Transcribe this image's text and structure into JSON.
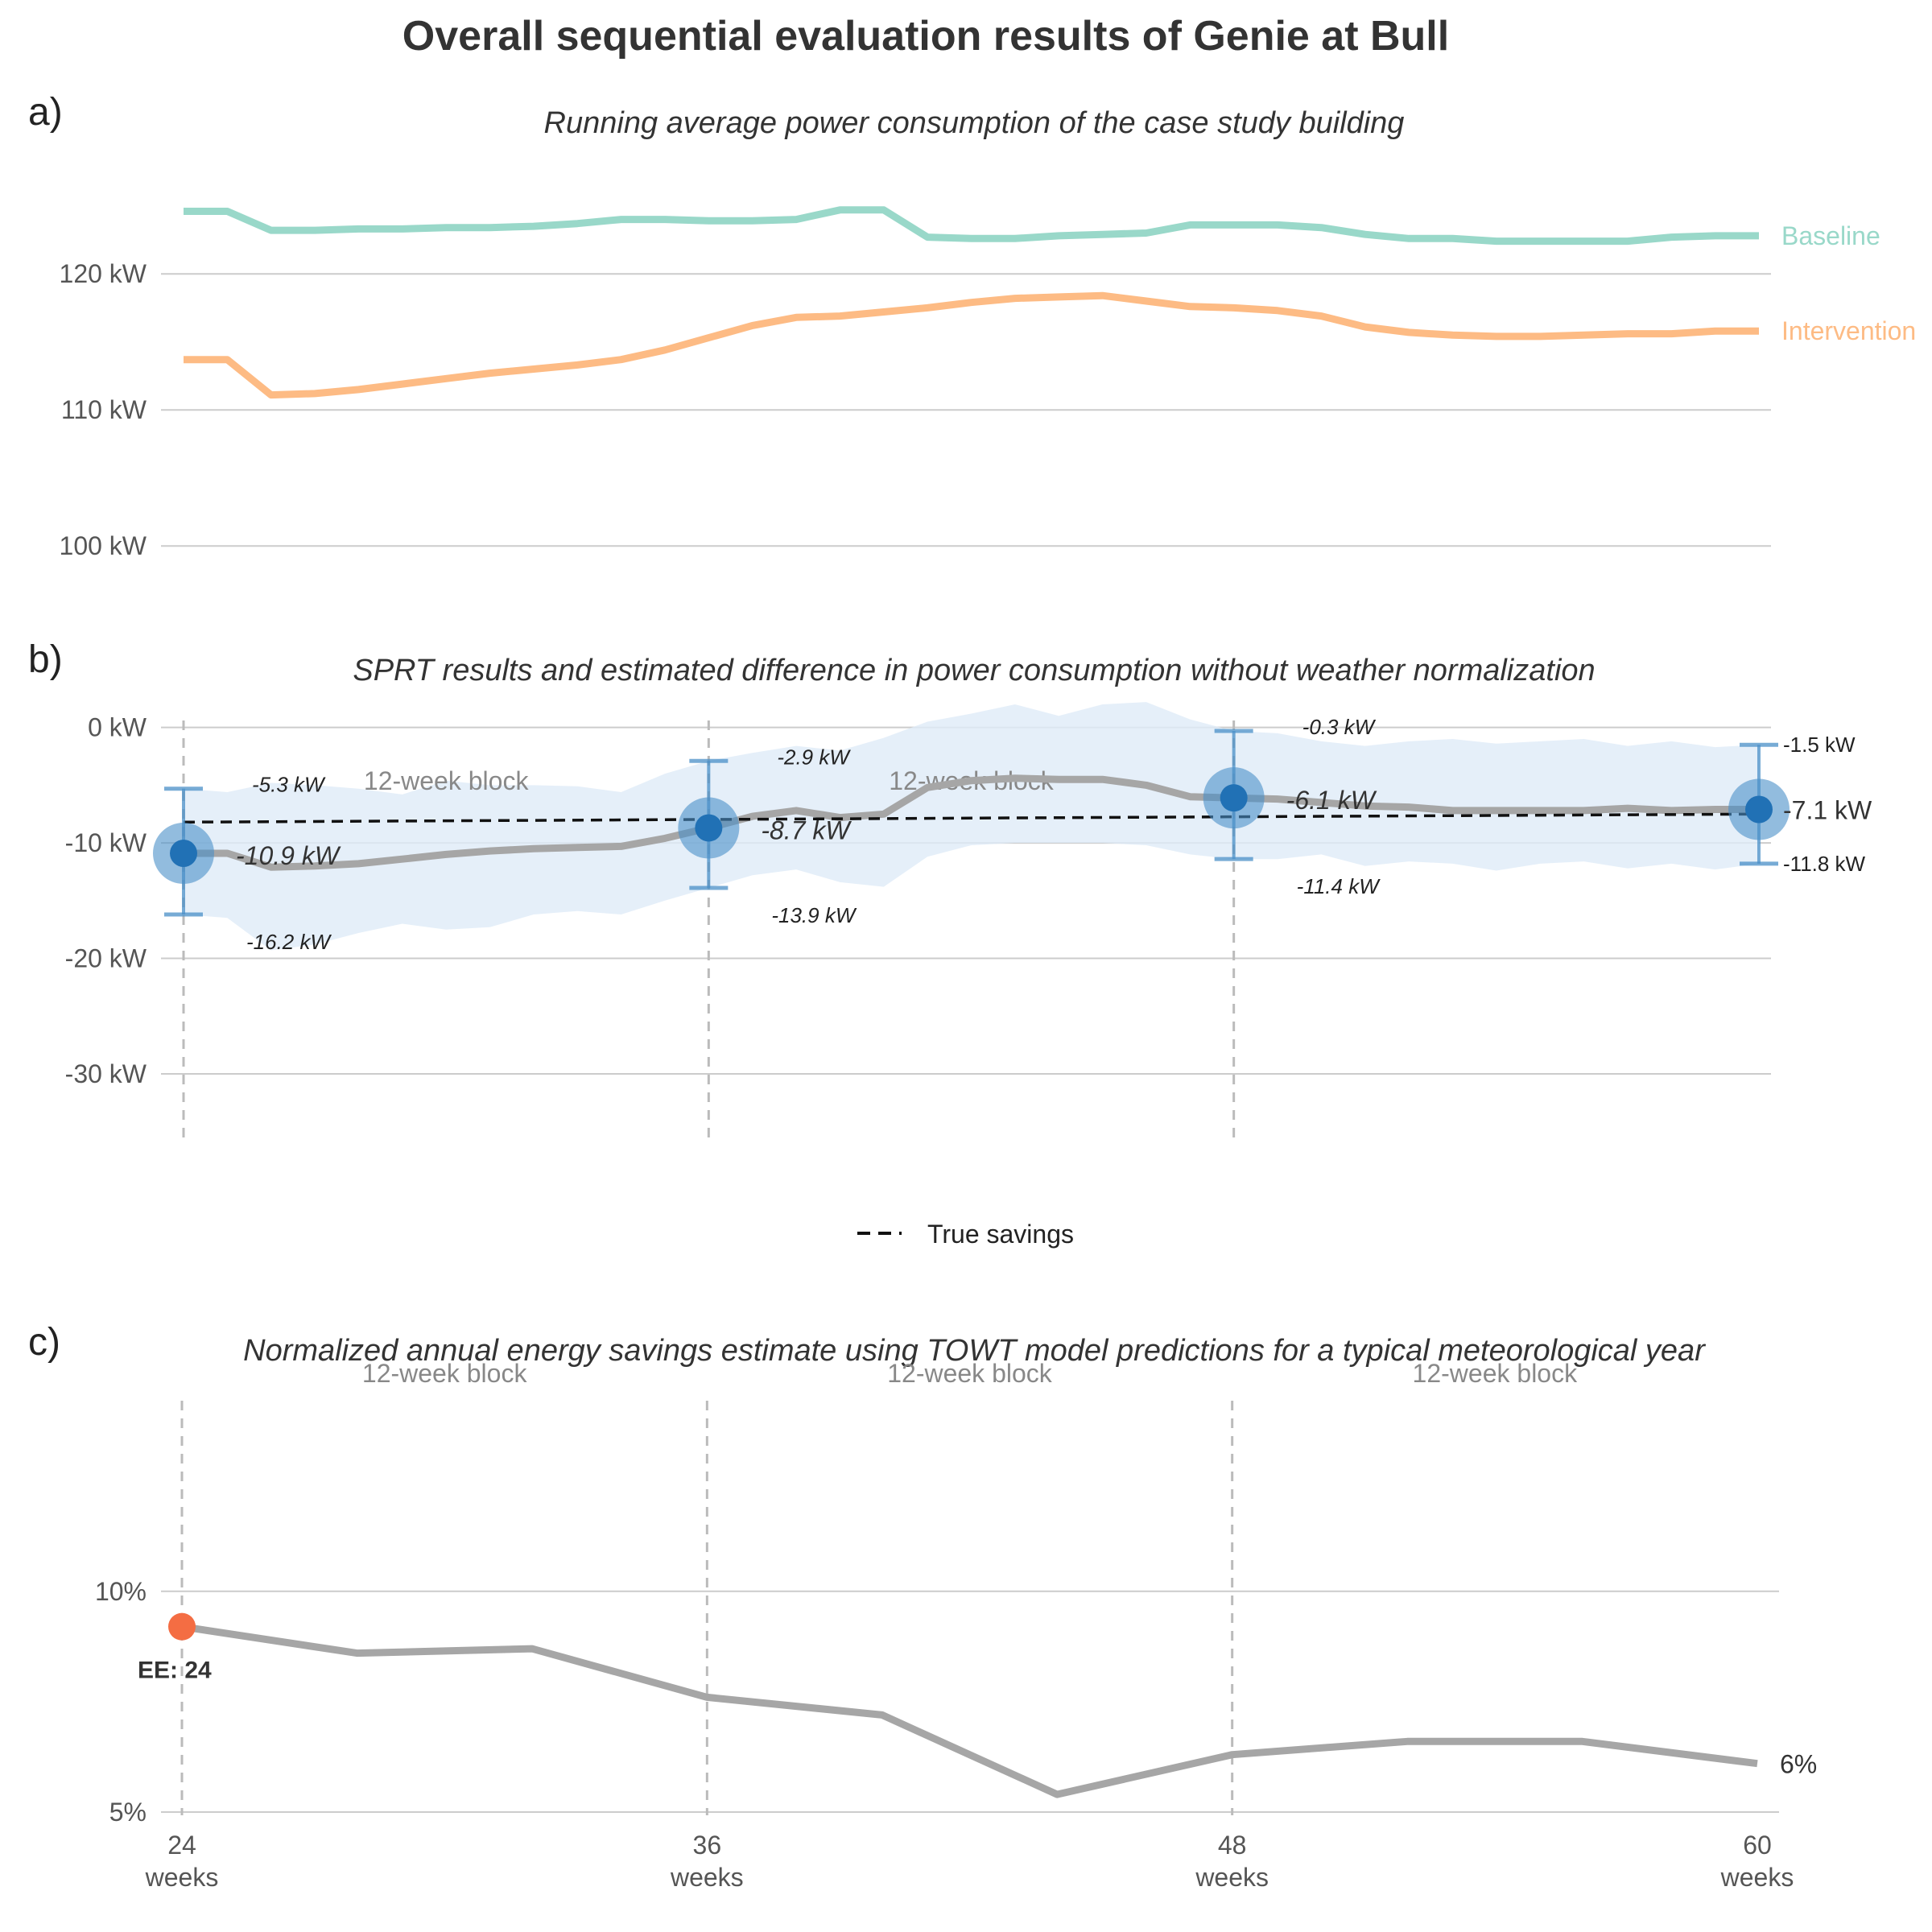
{
  "title": "Overall sequential evaluation results of Genie at Bull",
  "panels": {
    "a": {
      "letter": "a)",
      "subtitle": "Running average power consumption of the case study building"
    },
    "b": {
      "letter": "b)",
      "subtitle": "SPRT results and estimated difference in power consumption without weather normalization"
    },
    "c": {
      "letter": "c)",
      "subtitle": "Normalized annual energy savings estimate using TOWT model predictions for a typical meteorological year"
    }
  },
  "legend": {
    "true_savings": "True savings"
  },
  "block_label": "12-week block",
  "x_ticks": [
    {
      "value": 24,
      "line1": "24",
      "line2": "weeks"
    },
    {
      "value": 36,
      "line1": "36",
      "line2": "weeks"
    },
    {
      "value": 48,
      "line1": "48",
      "line2": "weeks"
    },
    {
      "value": 60,
      "line1": "60",
      "line2": "weeks"
    }
  ],
  "colors": {
    "baseline": "#99d8c9",
    "intervention": "#fdbb84",
    "estimate": "#a6a6a6",
    "band": "#deebf7",
    "point": "#2171b5",
    "ee_point": "#f46d43"
  },
  "chart_data": [
    {
      "type": "line",
      "panel": "a",
      "xlim": [
        24,
        60
      ],
      "ylim": [
        98,
        128
      ],
      "y_ticks": [
        {
          "value": 100,
          "label": "100 kW"
        },
        {
          "value": 110,
          "label": "110 kW"
        },
        {
          "value": 120,
          "label": "120 kW"
        }
      ],
      "x": [
        24,
        25,
        26,
        27,
        28,
        29,
        30,
        31,
        32,
        33,
        34,
        35,
        36,
        37,
        38,
        39,
        40,
        41,
        42,
        43,
        44,
        45,
        46,
        47,
        48,
        49,
        50,
        51,
        52,
        53,
        54,
        55,
        56,
        57,
        58,
        59,
        60
      ],
      "series": [
        {
          "name": "Baseline",
          "color": "#99d8c9",
          "values": [
            124.6,
            124.6,
            123.2,
            123.2,
            123.3,
            123.3,
            123.4,
            123.4,
            123.5,
            123.7,
            124.0,
            124.0,
            123.9,
            123.9,
            124.0,
            124.7,
            124.7,
            122.7,
            122.6,
            122.6,
            122.8,
            122.9,
            123.0,
            123.6,
            123.6,
            123.6,
            123.4,
            122.9,
            122.6,
            122.6,
            122.4,
            122.4,
            122.4,
            122.4,
            122.7,
            122.8,
            122.8
          ]
        },
        {
          "name": "Intervention",
          "color": "#fdbb84",
          "values": [
            113.7,
            113.7,
            111.1,
            111.2,
            111.5,
            111.9,
            112.3,
            112.7,
            113.0,
            113.3,
            113.7,
            114.4,
            115.3,
            116.2,
            116.8,
            116.9,
            117.2,
            117.5,
            117.9,
            118.2,
            118.3,
            118.4,
            118.0,
            117.6,
            117.5,
            117.3,
            116.9,
            116.1,
            115.7,
            115.5,
            115.4,
            115.4,
            115.5,
            115.6,
            115.6,
            115.8,
            115.8
          ]
        }
      ]
    },
    {
      "type": "line",
      "panel": "b",
      "xlim": [
        24,
        60
      ],
      "ylim": [
        -36,
        2
      ],
      "y_ticks": [
        {
          "value": 0,
          "label": "0 kW"
        },
        {
          "value": -10,
          "label": "-10 kW"
        },
        {
          "value": -20,
          "label": "-20 kW"
        },
        {
          "value": -30,
          "label": "-30 kW"
        }
      ],
      "estimate": {
        "x": [
          24,
          25,
          26,
          27,
          28,
          29,
          30,
          31,
          32,
          33,
          34,
          35,
          36,
          37,
          38,
          39,
          40,
          41,
          42,
          43,
          44,
          45,
          46,
          47,
          48,
          49,
          50,
          51,
          52,
          53,
          54,
          55,
          56,
          57,
          58,
          59,
          60
        ],
        "values": [
          -10.9,
          -10.9,
          -12.1,
          -12.0,
          -11.8,
          -11.4,
          -11.0,
          -10.7,
          -10.5,
          -10.4,
          -10.3,
          -9.6,
          -8.7,
          -7.7,
          -7.2,
          -7.8,
          -7.5,
          -5.2,
          -4.6,
          -4.4,
          -4.5,
          -4.5,
          -5.0,
          -6.0,
          -6.1,
          -6.2,
          -6.5,
          -6.8,
          -6.9,
          -7.2,
          -7.2,
          -7.2,
          -7.2,
          -7.0,
          -7.2,
          -7.1,
          -7.1
        ],
        "lower": [
          -16.2,
          -16.5,
          -19.3,
          -18.8,
          -17.8,
          -17.0,
          -17.5,
          -17.3,
          -16.2,
          -15.9,
          -16.2,
          -15.0,
          -13.9,
          -12.8,
          -12.3,
          -13.4,
          -13.8,
          -11.2,
          -10.2,
          -10.0,
          -10.0,
          -10.0,
          -10.2,
          -11.0,
          -11.4,
          -11.4,
          -11.0,
          -12.0,
          -11.6,
          -11.8,
          -12.4,
          -11.8,
          -11.6,
          -12.2,
          -11.8,
          -12.3,
          -11.8
        ],
        "upper": [
          -5.3,
          -5.6,
          -4.8,
          -5.0,
          -5.3,
          -5.8,
          -4.6,
          -5.0,
          -5.0,
          -5.1,
          -5.6,
          -4.0,
          -2.9,
          -2.2,
          -1.6,
          -2.0,
          -0.9,
          0.5,
          1.2,
          2.0,
          1.0,
          2.0,
          2.2,
          0.7,
          -0.3,
          -0.5,
          -1.2,
          -1.6,
          -1.2,
          -1.0,
          -1.4,
          -1.2,
          -1.0,
          -1.6,
          -1.2,
          -1.7,
          -1.5
        ]
      },
      "true_savings": {
        "x": [
          24,
          60
        ],
        "values": [
          -8.2,
          -7.5
        ]
      },
      "sprt_points": [
        {
          "x": 24,
          "estimate": -10.9,
          "lower": -16.2,
          "upper": -5.3,
          "label_est": "-10.9 kW",
          "label_low": "-16.2 kW",
          "label_up": "-5.3 kW"
        },
        {
          "x": 36,
          "estimate": -8.7,
          "lower": -13.9,
          "upper": -2.9,
          "label_est": "-8.7 kW",
          "label_low": "-13.9 kW",
          "label_up": "-2.9 kW"
        },
        {
          "x": 48,
          "estimate": -6.1,
          "lower": -11.4,
          "upper": -0.3,
          "label_est": "-6.1 kW",
          "label_low": "-11.4 kW",
          "label_up": "-0.3 kW"
        },
        {
          "x": 60,
          "estimate": -7.1,
          "lower": -11.8,
          "upper": -1.5,
          "label_est": "-7.1 kW",
          "label_low": "-11.8 kW",
          "label_up": "-1.5 kW"
        }
      ]
    },
    {
      "type": "line",
      "panel": "c",
      "xlim": [
        24,
        60
      ],
      "ylim": [
        4.8,
        14.5
      ],
      "y_ticks": [
        {
          "value": 5,
          "label": "5%"
        },
        {
          "value": 10,
          "label": "10%"
        }
      ],
      "x": [
        24,
        28,
        32,
        36,
        40,
        44,
        48,
        52,
        56,
        60
      ],
      "values": [
        9.2,
        8.6,
        8.7,
        7.6,
        7.2,
        5.4,
        6.3,
        6.6,
        6.6,
        6.1
      ],
      "end_label": "6%",
      "early_exit": {
        "x": 24,
        "value": 9.2,
        "label": "EE: 24"
      }
    }
  ]
}
